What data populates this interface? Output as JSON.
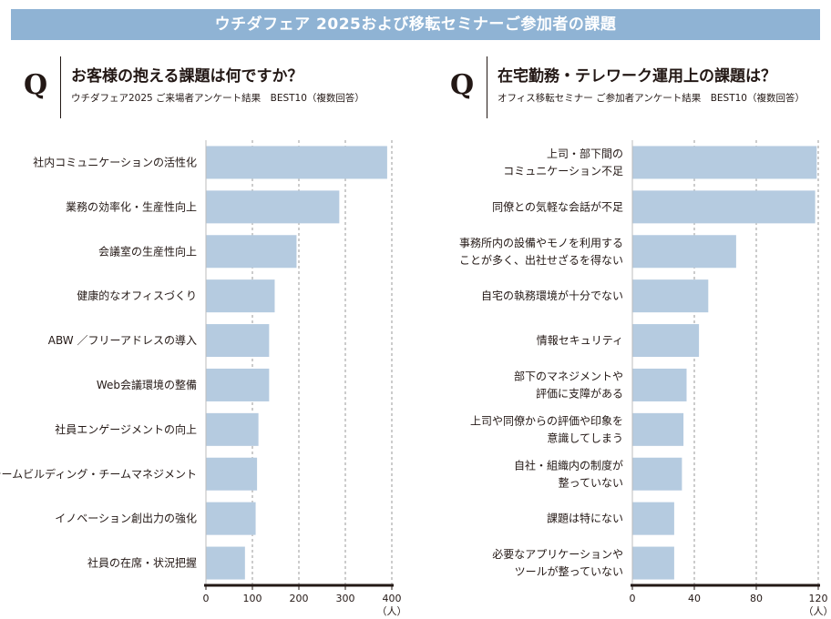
{
  "banner": {
    "title": "ウチダフェア 2025および移転セミナーご参加者の課題"
  },
  "q_mark": "Q",
  "chart_data": [
    {
      "type": "bar",
      "orientation": "horizontal",
      "title": "お客様の抱える課題は何ですか？",
      "subtitle": "ウチダフェア2025 ご来場者アンケート結果　BEST10（複数回答）",
      "categories": [
        "社内コミュニケーションの活性化",
        "業務の効率化・生産性向上",
        "会議室の生産性向上",
        "健康的なオフィスづくり",
        "ABW ／フリーアドレスの導入",
        "Web会議環境の整備",
        "社員エンゲージメントの向上",
        "チームビルディング・チームマネジメント",
        "イノベーション創出力の強化",
        "社員の在席・状況把握"
      ],
      "values": [
        390,
        287,
        195,
        148,
        136,
        136,
        113,
        110,
        107,
        84
      ],
      "xlim": [
        0,
        400
      ],
      "ticks": [
        0,
        100,
        200,
        300,
        400
      ],
      "unit_label": "（人）",
      "grid": true,
      "bar_color": "#b5cbe0"
    },
    {
      "type": "bar",
      "orientation": "horizontal",
      "title": "在宅勤務・テレワーク運用上の課題は？",
      "subtitle": "オフィス移転セミナー ご参加者アンケート結果　BEST10（複数回答）",
      "categories": [
        "上司・部下間の\nコミュニケーション不足",
        "同僚との気軽な会話が不足",
        "事務所内の設備やモノを利用する\nことが多く、出社せざるを得ない",
        "自宅の執務環境が十分でない",
        "情報セキュリティ",
        "部下のマネジメントや\n評価に支障がある",
        "上司や同僚からの評価や印象を\n意識してしまう",
        "自社・組織内の制度が\n整っていない",
        "課題は特にない",
        "必要なアプリケーションや\nツールが整っていない"
      ],
      "values": [
        119,
        118,
        67,
        49,
        43,
        35,
        33,
        32,
        27,
        27
      ],
      "xlim": [
        0,
        120
      ],
      "ticks": [
        0,
        40,
        80,
        120
      ],
      "unit_label": "（人）",
      "grid": true,
      "bar_color": "#b5cbe0"
    }
  ]
}
